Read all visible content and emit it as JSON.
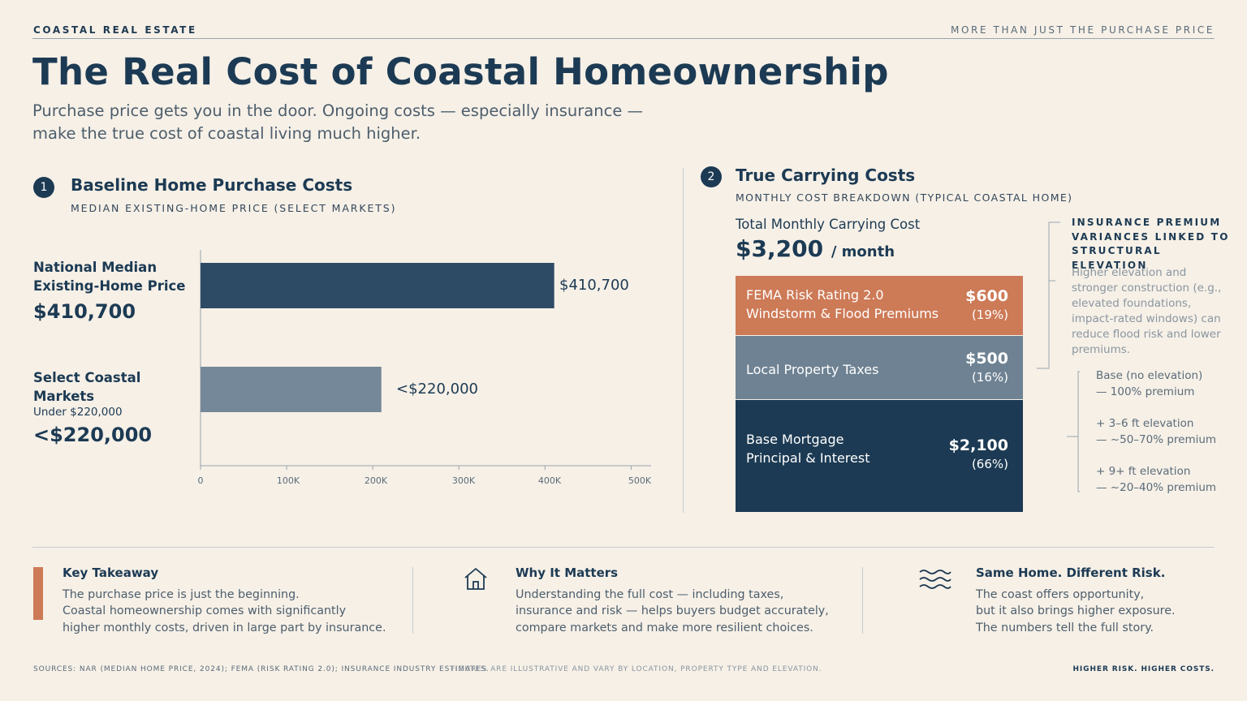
{
  "header": {
    "brand": "COASTAL REAL ESTATE",
    "tagline": "MORE THAN JUST THE PURCHASE PRICE",
    "title": "The Real Cost of Coastal Homeownership",
    "subtitle": "Purchase price gets you in the door. Ongoing costs — especially insurance — make the true cost of coastal living much higher."
  },
  "section1": {
    "number": "1",
    "title": "Baseline Home Purchase Costs",
    "subtitle": "MEDIAN EXISTING-HOME PRICE (SELECT MARKETS)",
    "bars": [
      {
        "label": "National Median Existing-Home Price",
        "sublabel": "",
        "big": "$410,700",
        "value_label": "$410,700"
      },
      {
        "label": "Select Coastal Markets",
        "sublabel": "Under $220,000",
        "big": "<$220,000",
        "value_label": "<$220,000"
      }
    ]
  },
  "chart_data": {
    "type": "bar",
    "orientation": "horizontal",
    "categories": [
      "National Median Existing-Home Price",
      "Select Coastal Markets"
    ],
    "values": [
      410700,
      210000
    ],
    "value_labels": [
      "$410,700",
      "<$220,000"
    ],
    "colors": [
      "#2e4b66",
      "#758899"
    ],
    "xlim": [
      0,
      510000
    ],
    "ticks": [
      {
        "value": 0,
        "label": "0"
      },
      {
        "value": 100000,
        "label": "100K"
      },
      {
        "value": 200000,
        "label": "200K"
      },
      {
        "value": 300000,
        "label": "300K"
      },
      {
        "value": 400000,
        "label": "400K"
      },
      {
        "value": 500000,
        "label": "500K"
      }
    ],
    "grid": false
  },
  "section2": {
    "number": "2",
    "title": "True Carrying Costs",
    "subtitle": "MONTHLY COST BREAKDOWN (TYPICAL COASTAL HOME)",
    "total_label": "Total Monthly Carrying Cost",
    "total_value": "$3,200",
    "total_unit": "/ month",
    "blocks": [
      {
        "line1": "FEMA Risk Rating 2.0",
        "line2": "Windstorm & Flood Premiums",
        "amount": "$600",
        "pct": "(19%)",
        "color": "#cd7a57",
        "value": 600
      },
      {
        "line1": "Local Property Taxes",
        "line2": "",
        "amount": "$500",
        "pct": "(16%)",
        "color": "#6e8293",
        "value": 500
      },
      {
        "line1": "Base Mortgage",
        "line2": "Principal & Interest",
        "amount": "$2,100",
        "pct": "(66%)",
        "color": "#1c3a53",
        "value": 2100
      }
    ],
    "insurance_heading": [
      "INSURANCE PREMIUM",
      "VARIANCES LINKED TO",
      "STRUCTURAL ELEVATION"
    ],
    "insurance_desc": "Higher elevation and stronger construction (e.g., elevated foundations, impact-rated windows) can reduce flood risk and lower premiums.",
    "elevation": [
      {
        "line1": "Base (no elevation)",
        "line2": "— 100% premium"
      },
      {
        "line1": "+ 3–6 ft elevation",
        "line2": "— ~50–70% premium"
      },
      {
        "line1": "+ 9+ ft elevation",
        "line2": "— ~20–40% premium"
      }
    ]
  },
  "cards": [
    {
      "title": "Key Takeaway",
      "lines": [
        "The purchase price is just the beginning.",
        "Coastal homeownership comes with significantly",
        "higher monthly costs, driven in large part by insurance."
      ]
    },
    {
      "title": "Why It Matters",
      "lines": [
        "Understanding the full cost — including taxes,",
        "insurance and risk — helps buyers budget accurately,",
        "compare markets and make more resilient choices."
      ]
    },
    {
      "title": "Same Home. Different Risk.",
      "lines": [
        "The coast offers opportunity,",
        "but it also brings higher exposure.",
        "The numbers tell the full story."
      ]
    }
  ],
  "footer": {
    "sources": "SOURCES: NAR (MEDIAN HOME PRICE, 2024); FEMA (RISK RATING 2.0); INSURANCE INDUSTRY ESTIMATES.",
    "note": "FIGURES ARE ILLUSTRATIVE AND VARY BY LOCATION, PROPERTY TYPE AND ELEVATION.",
    "tag": "HIGHER RISK. HIGHER COSTS."
  }
}
